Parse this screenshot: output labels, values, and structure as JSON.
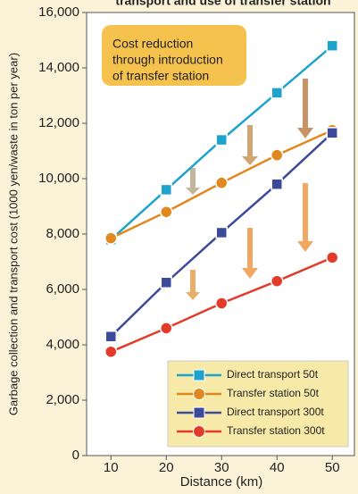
{
  "chart_data": {
    "type": "line",
    "title": "transport and use of transfer station",
    "annotation": [
      "Cost reduction",
      "through introduction",
      "of transfer station"
    ],
    "x_label": "Distance (km)",
    "y_label": "Garbage collection and transport cost (1000 yen/waste in ton per year)",
    "x": [
      10,
      20,
      30,
      40,
      50
    ],
    "xlim": [
      5.6,
      54
    ],
    "xticks": [
      10,
      20,
      30,
      40,
      50
    ],
    "ylim": [
      0,
      16000
    ],
    "yticks": [
      0,
      {
        "value": 2000,
        "label": "2,000"
      },
      {
        "value": 4000,
        "label": "4,000"
      },
      {
        "value": 6000,
        "label": "6,000"
      },
      {
        "value": 8000,
        "label": "8,000"
      },
      {
        "value": 10000,
        "label": "10,000"
      },
      {
        "value": 12000,
        "label": "12,000"
      },
      {
        "value": 14000,
        "label": "14,000"
      },
      {
        "value": 16000,
        "label": "16,000"
      }
    ],
    "legend": "lower right",
    "series": [
      {
        "name": "Direct transport 50t",
        "color": "#1ea3cc",
        "marker": "square",
        "values": [
          7800,
          9600,
          11400,
          13100,
          14800
        ]
      },
      {
        "name": "Transfer station 50t",
        "color": "#e0891f",
        "marker": "circle",
        "values": [
          7850,
          8800,
          9850,
          10850,
          11750
        ]
      },
      {
        "name": "Direct transport 300t",
        "color": "#3c4a9c",
        "marker": "square",
        "values": [
          4300,
          6250,
          8050,
          9800,
          11650
        ]
      },
      {
        "name": "Transfer station 300t",
        "color": "#e23b2a",
        "marker": "circle",
        "values": [
          3750,
          4600,
          5500,
          6300,
          7150
        ]
      }
    ]
  }
}
